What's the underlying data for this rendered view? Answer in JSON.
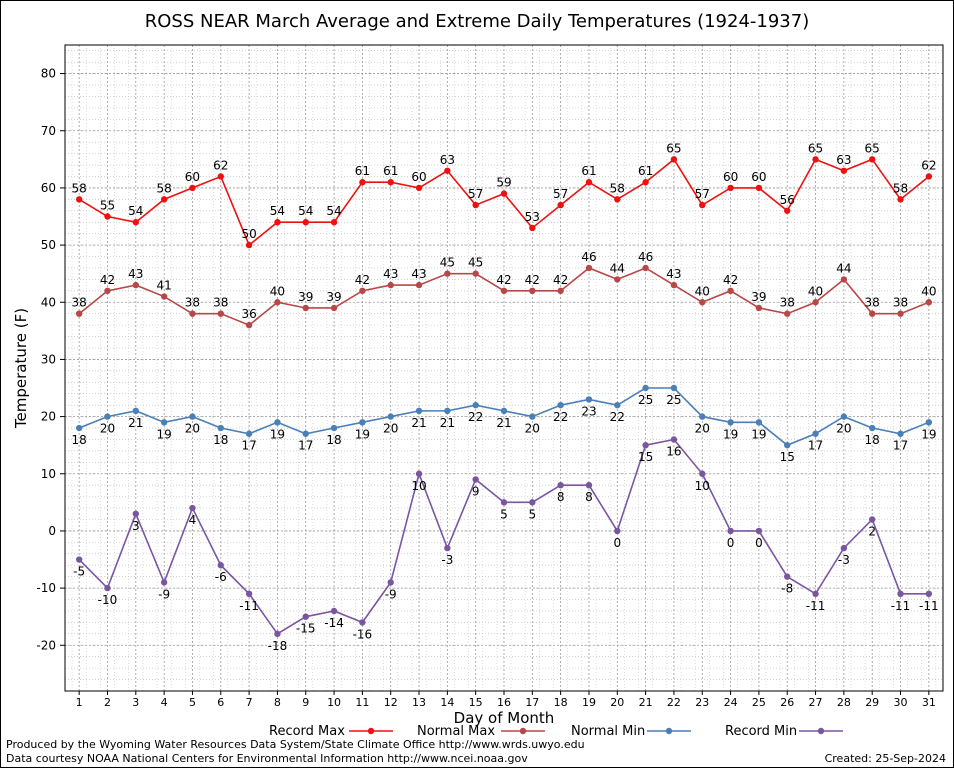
{
  "chart_data": {
    "type": "line",
    "title": "ROSS NEAR March Average and Extreme Daily Temperatures (1924-1937)",
    "xlabel": "Day of Month",
    "ylabel": "Temperature (F)",
    "ylim": [
      -28,
      85
    ],
    "yticks": [
      -20,
      -10,
      0,
      10,
      20,
      30,
      40,
      50,
      60,
      70,
      80
    ],
    "x": [
      1,
      2,
      3,
      4,
      5,
      6,
      7,
      8,
      9,
      10,
      11,
      12,
      13,
      14,
      15,
      16,
      17,
      18,
      19,
      20,
      21,
      22,
      23,
      24,
      25,
      26,
      27,
      28,
      29,
      30,
      31
    ],
    "grid": true,
    "legend_position": "bottom",
    "series": [
      {
        "name": "Record Max",
        "color": "#ee1111",
        "label_pos": "above",
        "values": [
          58,
          55,
          54,
          58,
          60,
          62,
          50,
          54,
          54,
          54,
          61,
          61,
          60,
          63,
          57,
          59,
          53,
          57,
          61,
          58,
          61,
          65,
          57,
          60,
          60,
          56,
          65,
          63,
          65,
          58,
          62
        ]
      },
      {
        "name": "Normal Max",
        "color": "#b84848",
        "label_pos": "above",
        "values": [
          38,
          42,
          43,
          41,
          38,
          38,
          36,
          40,
          39,
          39,
          42,
          43,
          43,
          45,
          45,
          42,
          42,
          42,
          46,
          44,
          46,
          43,
          40,
          42,
          39,
          38,
          40,
          44,
          38,
          38,
          40
        ]
      },
      {
        "name": "Normal Min",
        "color": "#4a7fb8",
        "label_pos": "below",
        "values": [
          18,
          20,
          21,
          19,
          20,
          18,
          17,
          19,
          17,
          18,
          19,
          20,
          21,
          21,
          22,
          21,
          20,
          22,
          23,
          22,
          25,
          25,
          20,
          19,
          19,
          15,
          17,
          20,
          18,
          17,
          19
        ]
      },
      {
        "name": "Record Min",
        "color": "#7a56a0",
        "label_pos": "below",
        "values": [
          -5,
          -10,
          3,
          -9,
          4,
          -6,
          -11,
          -18,
          -15,
          -14,
          -16,
          -9,
          10,
          -3,
          9,
          5,
          5,
          8,
          8,
          0,
          15,
          16,
          10,
          0,
          0,
          -8,
          -11,
          -3,
          2,
          -11,
          -11
        ]
      }
    ]
  },
  "footer": {
    "produced_by": "Produced by the Wyoming Water Resources Data System/State Climate Office http://www.wrds.uwyo.edu",
    "courtesy": "Data courtesy NOAA National Centers for Environmental Information http://www.ncei.noaa.gov",
    "created": "Created: 25-Sep-2024"
  }
}
